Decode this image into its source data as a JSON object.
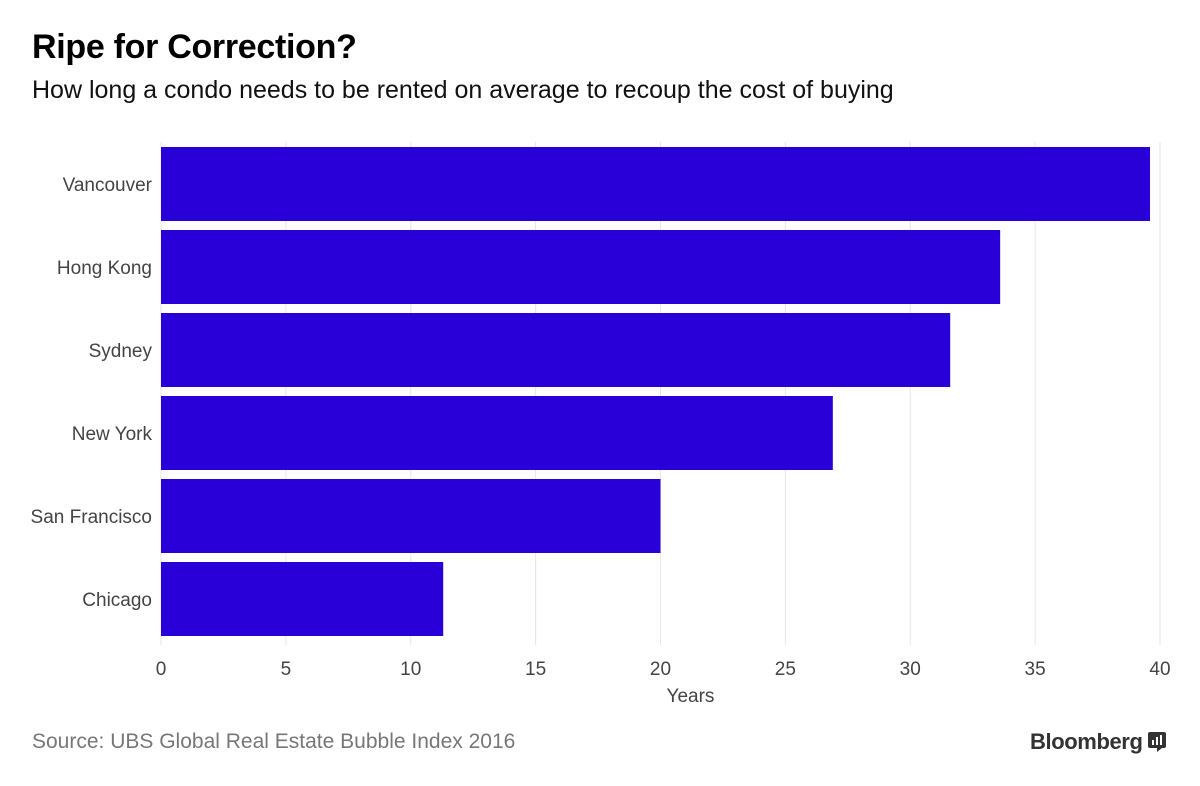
{
  "header": {
    "title": "Ripe for Correction?",
    "subtitle": "How long a condo needs to be rented on average to recoup the cost of buying"
  },
  "footer": {
    "source": "Source: UBS Global Real Estate Bubble Index 2016",
    "brand": "Bloomberg"
  },
  "colors": {
    "bar": "#2a00d8",
    "grid": "#e6e6e6",
    "text": "#444444"
  },
  "chart_data": {
    "type": "bar",
    "orientation": "horizontal",
    "title": "Ripe for Correction?",
    "subtitle": "How long a condo needs to be rented on average to recoup the cost of buying",
    "categories": [
      "Vancouver",
      "Hong Kong",
      "Sydney",
      "New York",
      "San Francisco",
      "Chicago"
    ],
    "values": [
      39.6,
      33.6,
      31.6,
      26.9,
      20.0,
      11.3
    ],
    "xlabel": "Years",
    "ylabel": "",
    "xlim": [
      0,
      40
    ],
    "xticks": [
      0,
      5,
      10,
      15,
      20,
      25,
      30,
      35,
      40
    ],
    "grid": true,
    "legend": "none"
  }
}
